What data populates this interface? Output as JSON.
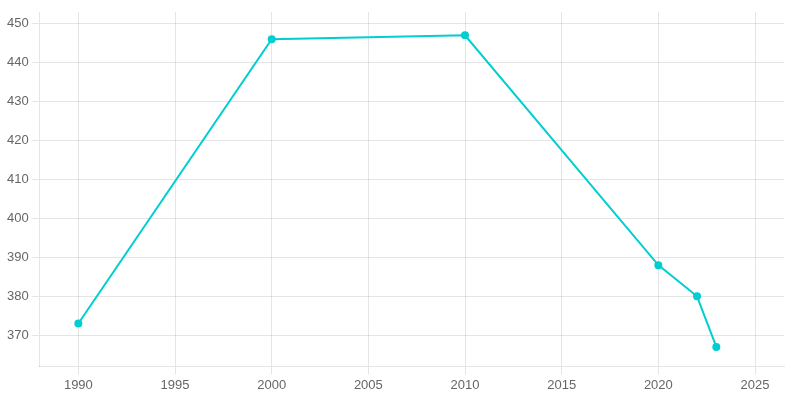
{
  "chart_data": {
    "type": "line",
    "x": [
      1990,
      2000,
      2010,
      2020,
      2022,
      2023
    ],
    "values": [
      373,
      446,
      447,
      388,
      380,
      367
    ],
    "color": "#00CED1",
    "marker": "circle",
    "xlim": [
      1988,
      2026.5
    ],
    "xticks": [
      1990,
      1995,
      2000,
      2005,
      2010,
      2015,
      2020,
      2025
    ],
    "ylim": [
      362,
      453
    ],
    "yticks": [
      370,
      380,
      390,
      400,
      410,
      420,
      430,
      440,
      450
    ],
    "grid": true
  }
}
